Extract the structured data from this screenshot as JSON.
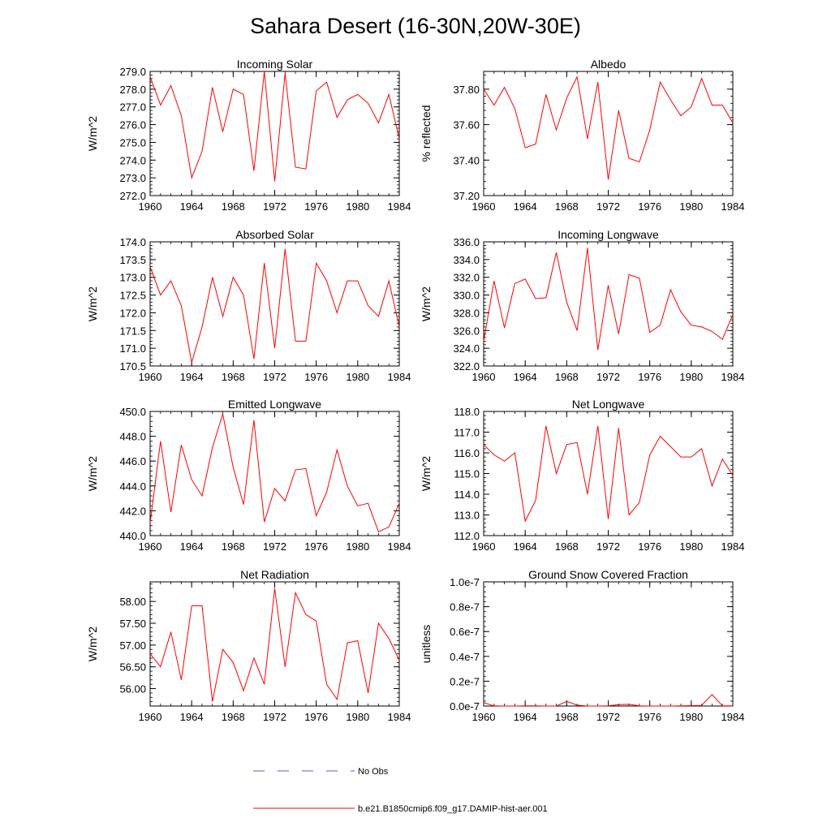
{
  "figure": {
    "title": "Sahara Desert (16-30N,20W-30E)",
    "legend": [
      {
        "label": "No Obs",
        "color": "#5a5ad8",
        "dash": true
      },
      {
        "label": "b.e21.B1850cmip6.f09_g17.DAMIP-hist-aer.001",
        "color": "#ff0000",
        "dash": false
      }
    ]
  },
  "chart_data": [
    {
      "type": "line",
      "title": "Incoming Solar",
      "ylabel": "W/m^2",
      "xlim": [
        1960,
        1984
      ],
      "ylim": [
        272.0,
        279.0
      ],
      "x_ticks": [
        1960,
        1964,
        1968,
        1972,
        1976,
        1980,
        1984
      ],
      "y_ticks": [
        "272.0",
        "273.0",
        "274.0",
        "275.0",
        "276.0",
        "277.0",
        "278.0",
        "279.0"
      ],
      "y_tick_values": [
        272,
        273,
        274,
        275,
        276,
        277,
        278,
        279
      ],
      "series": [
        {
          "color": "#ff0000",
          "x": [
            1960,
            1961,
            1962,
            1963,
            1964,
            1965,
            1966,
            1967,
            1968,
            1969,
            1970,
            1971,
            1972,
            1973,
            1974,
            1975,
            1976,
            1977,
            1978,
            1979,
            1980,
            1981,
            1982,
            1983,
            1984
          ],
          "y": [
            278.7,
            277.1,
            278.2,
            276.5,
            273.0,
            274.5,
            278.1,
            275.6,
            278.0,
            277.7,
            273.4,
            279.0,
            272.8,
            278.9,
            273.6,
            273.5,
            277.9,
            278.4,
            276.4,
            277.4,
            277.7,
            277.2,
            276.1,
            277.7,
            275.2
          ]
        }
      ]
    },
    {
      "type": "line",
      "title": "Albedo",
      "ylabel": "% reflected",
      "xlim": [
        1960,
        1984
      ],
      "ylim": [
        37.2,
        37.9
      ],
      "x_ticks": [
        1960,
        1964,
        1968,
        1972,
        1976,
        1980,
        1984
      ],
      "y_ticks": [
        "37.20",
        "37.40",
        "37.60",
        "37.80"
      ],
      "y_tick_values": [
        37.2,
        37.4,
        37.6,
        37.8
      ],
      "series": [
        {
          "color": "#ff0000",
          "x": [
            1960,
            1961,
            1962,
            1963,
            1964,
            1965,
            1966,
            1967,
            1968,
            1969,
            1970,
            1971,
            1972,
            1973,
            1974,
            1975,
            1976,
            1977,
            1978,
            1979,
            1980,
            1981,
            1982,
            1983,
            1984
          ],
          "y": [
            37.8,
            37.71,
            37.81,
            37.69,
            37.47,
            37.49,
            37.77,
            37.57,
            37.75,
            37.87,
            37.52,
            37.84,
            37.29,
            37.68,
            37.41,
            37.39,
            37.57,
            37.84,
            37.74,
            37.65,
            37.7,
            37.86,
            37.71,
            37.71,
            37.61
          ]
        }
      ]
    },
    {
      "type": "line",
      "title": "Absorbed Solar",
      "ylabel": "W/m^2",
      "xlim": [
        1960,
        1984
      ],
      "ylim": [
        170.5,
        174.0
      ],
      "x_ticks": [
        1960,
        1964,
        1968,
        1972,
        1976,
        1980,
        1984
      ],
      "y_ticks": [
        "170.5",
        "171.0",
        "171.5",
        "172.0",
        "172.5",
        "173.0",
        "173.5",
        "174.0"
      ],
      "y_tick_values": [
        170.5,
        171,
        171.5,
        172,
        172.5,
        173,
        173.5,
        174
      ],
      "series": [
        {
          "color": "#ff0000",
          "x": [
            1960,
            1961,
            1962,
            1963,
            1964,
            1965,
            1966,
            1967,
            1968,
            1969,
            1970,
            1971,
            1972,
            1973,
            1974,
            1975,
            1976,
            1977,
            1978,
            1979,
            1980,
            1981,
            1982,
            1983,
            1984
          ],
          "y": [
            173.3,
            172.5,
            172.9,
            172.2,
            170.6,
            171.6,
            173.0,
            171.9,
            173.0,
            172.5,
            170.7,
            173.4,
            171.0,
            173.8,
            171.2,
            171.2,
            173.4,
            172.9,
            172.0,
            172.9,
            172.9,
            172.2,
            171.9,
            172.9,
            171.6
          ]
        }
      ]
    },
    {
      "type": "line",
      "title": "Incoming Longwave",
      "ylabel": "W/m^2",
      "xlim": [
        1960,
        1984
      ],
      "ylim": [
        322.0,
        336.0
      ],
      "x_ticks": [
        1960,
        1964,
        1968,
        1972,
        1976,
        1980,
        1984
      ],
      "y_ticks": [
        "322.0",
        "324.0",
        "326.0",
        "328.0",
        "330.0",
        "332.0",
        "334.0",
        "336.0"
      ],
      "y_tick_values": [
        322,
        324,
        326,
        328,
        330,
        332,
        334,
        336
      ],
      "series": [
        {
          "color": "#ff0000",
          "x": [
            1960,
            1961,
            1962,
            1963,
            1964,
            1965,
            1966,
            1967,
            1968,
            1969,
            1970,
            1971,
            1972,
            1973,
            1974,
            1975,
            1976,
            1977,
            1978,
            1979,
            1980,
            1981,
            1982,
            1983,
            1984
          ],
          "y": [
            324.8,
            331.6,
            326.3,
            331.3,
            331.8,
            329.6,
            329.7,
            334.8,
            329.2,
            326.0,
            335.3,
            323.8,
            331.1,
            325.6,
            332.3,
            331.9,
            325.8,
            326.6,
            330.6,
            328.1,
            326.6,
            326.4,
            325.9,
            325.0,
            327.8
          ]
        }
      ]
    },
    {
      "type": "line",
      "title": "Emitted Longwave",
      "ylabel": "W/m^2",
      "xlim": [
        1960,
        1984
      ],
      "ylim": [
        440.0,
        450.0
      ],
      "x_ticks": [
        1960,
        1964,
        1968,
        1972,
        1976,
        1980,
        1984
      ],
      "y_ticks": [
        "440.0",
        "442.0",
        "444.0",
        "446.0",
        "448.0",
        "450.0"
      ],
      "y_tick_values": [
        440,
        442,
        444,
        446,
        448,
        450
      ],
      "series": [
        {
          "color": "#ff0000",
          "x": [
            1960,
            1961,
            1962,
            1963,
            1964,
            1965,
            1966,
            1967,
            1968,
            1969,
            1970,
            1971,
            1972,
            1973,
            1974,
            1975,
            1976,
            1977,
            1978,
            1979,
            1980,
            1981,
            1982,
            1983,
            1984
          ],
          "y": [
            441.0,
            447.6,
            441.9,
            447.3,
            444.5,
            443.2,
            447.1,
            449.8,
            445.5,
            442.5,
            449.3,
            441.1,
            443.8,
            442.8,
            445.3,
            445.4,
            441.6,
            443.5,
            446.9,
            444.0,
            442.4,
            442.6,
            440.3,
            440.7,
            442.6
          ]
        }
      ]
    },
    {
      "type": "line",
      "title": "Net Longwave",
      "ylabel": "W/m^2",
      "xlim": [
        1960,
        1984
      ],
      "ylim": [
        112.0,
        118.0
      ],
      "x_ticks": [
        1960,
        1964,
        1968,
        1972,
        1976,
        1980,
        1984
      ],
      "y_ticks": [
        "112.0",
        "113.0",
        "114.0",
        "115.0",
        "116.0",
        "117.0",
        "118.0"
      ],
      "y_tick_values": [
        112,
        113,
        114,
        115,
        116,
        117,
        118
      ],
      "series": [
        {
          "color": "#ff0000",
          "x": [
            1960,
            1961,
            1962,
            1963,
            1964,
            1965,
            1966,
            1967,
            1968,
            1969,
            1970,
            1971,
            1972,
            1973,
            1974,
            1975,
            1976,
            1977,
            1978,
            1979,
            1980,
            1981,
            1982,
            1983,
            1984
          ],
          "y": [
            116.4,
            115.9,
            115.6,
            116.0,
            112.7,
            113.7,
            117.3,
            115.0,
            116.4,
            116.5,
            114.0,
            117.3,
            112.8,
            117.2,
            113.0,
            113.6,
            115.9,
            116.8,
            116.3,
            115.8,
            115.8,
            116.2,
            114.4,
            115.7,
            114.9
          ]
        }
      ]
    },
    {
      "type": "line",
      "title": "Net Radiation",
      "ylabel": "W/m^2",
      "xlim": [
        1960,
        1984
      ],
      "ylim": [
        55.6,
        58.45
      ],
      "x_ticks": [
        1960,
        1964,
        1968,
        1972,
        1976,
        1980,
        1984
      ],
      "y_ticks": [
        "56.00",
        "56.50",
        "57.00",
        "57.50",
        "58.00"
      ],
      "y_tick_values": [
        56,
        56.5,
        57,
        57.5,
        58
      ],
      "series": [
        {
          "color": "#ff0000",
          "x": [
            1960,
            1961,
            1962,
            1963,
            1964,
            1965,
            1966,
            1967,
            1968,
            1969,
            1970,
            1971,
            1972,
            1973,
            1974,
            1975,
            1976,
            1977,
            1978,
            1979,
            1980,
            1981,
            1982,
            1983,
            1984
          ],
          "y": [
            56.8,
            56.5,
            57.3,
            56.2,
            57.9,
            57.9,
            55.7,
            56.9,
            56.6,
            55.95,
            56.7,
            56.1,
            58.3,
            56.5,
            58.2,
            57.7,
            57.55,
            56.1,
            55.75,
            57.05,
            57.1,
            55.9,
            57.5,
            57.15,
            56.65
          ]
        }
      ]
    },
    {
      "type": "line",
      "title": "Ground Snow Covered Fraction",
      "ylabel": "unitless",
      "xlim": [
        1960,
        1984
      ],
      "ylim": [
        0,
        1e-07
      ],
      "x_ticks": [
        1960,
        1964,
        1968,
        1972,
        1976,
        1980,
        1984
      ],
      "y_ticks": [
        "0.0e-7",
        "0.2e-7",
        "0.4e-7",
        "0.6e-7",
        "0.8e-7",
        "1.0e-7"
      ],
      "y_tick_values": [
        0,
        2e-08,
        4e-08,
        6e-08,
        8e-08,
        1e-07
      ],
      "series": [
        {
          "color": "#ff0000",
          "x": [
            1960,
            1961,
            1962,
            1963,
            1964,
            1965,
            1966,
            1967,
            1968,
            1969,
            1970,
            1971,
            1972,
            1973,
            1974,
            1975,
            1976,
            1977,
            1978,
            1979,
            1980,
            1981,
            1982,
            1983,
            1984
          ],
          "y": [
            2.7e-09,
            1e-10,
            0,
            0,
            1e-10,
            2e-10,
            0,
            0,
            3.7e-09,
            7e-10,
            0,
            0,
            1e-10,
            1.1e-09,
            1.4e-09,
            1e-10,
            0,
            0,
            0,
            1e-10,
            3e-10,
            5e-10,
            9.3e-09,
            2e-10,
            2e-10
          ]
        }
      ]
    }
  ]
}
